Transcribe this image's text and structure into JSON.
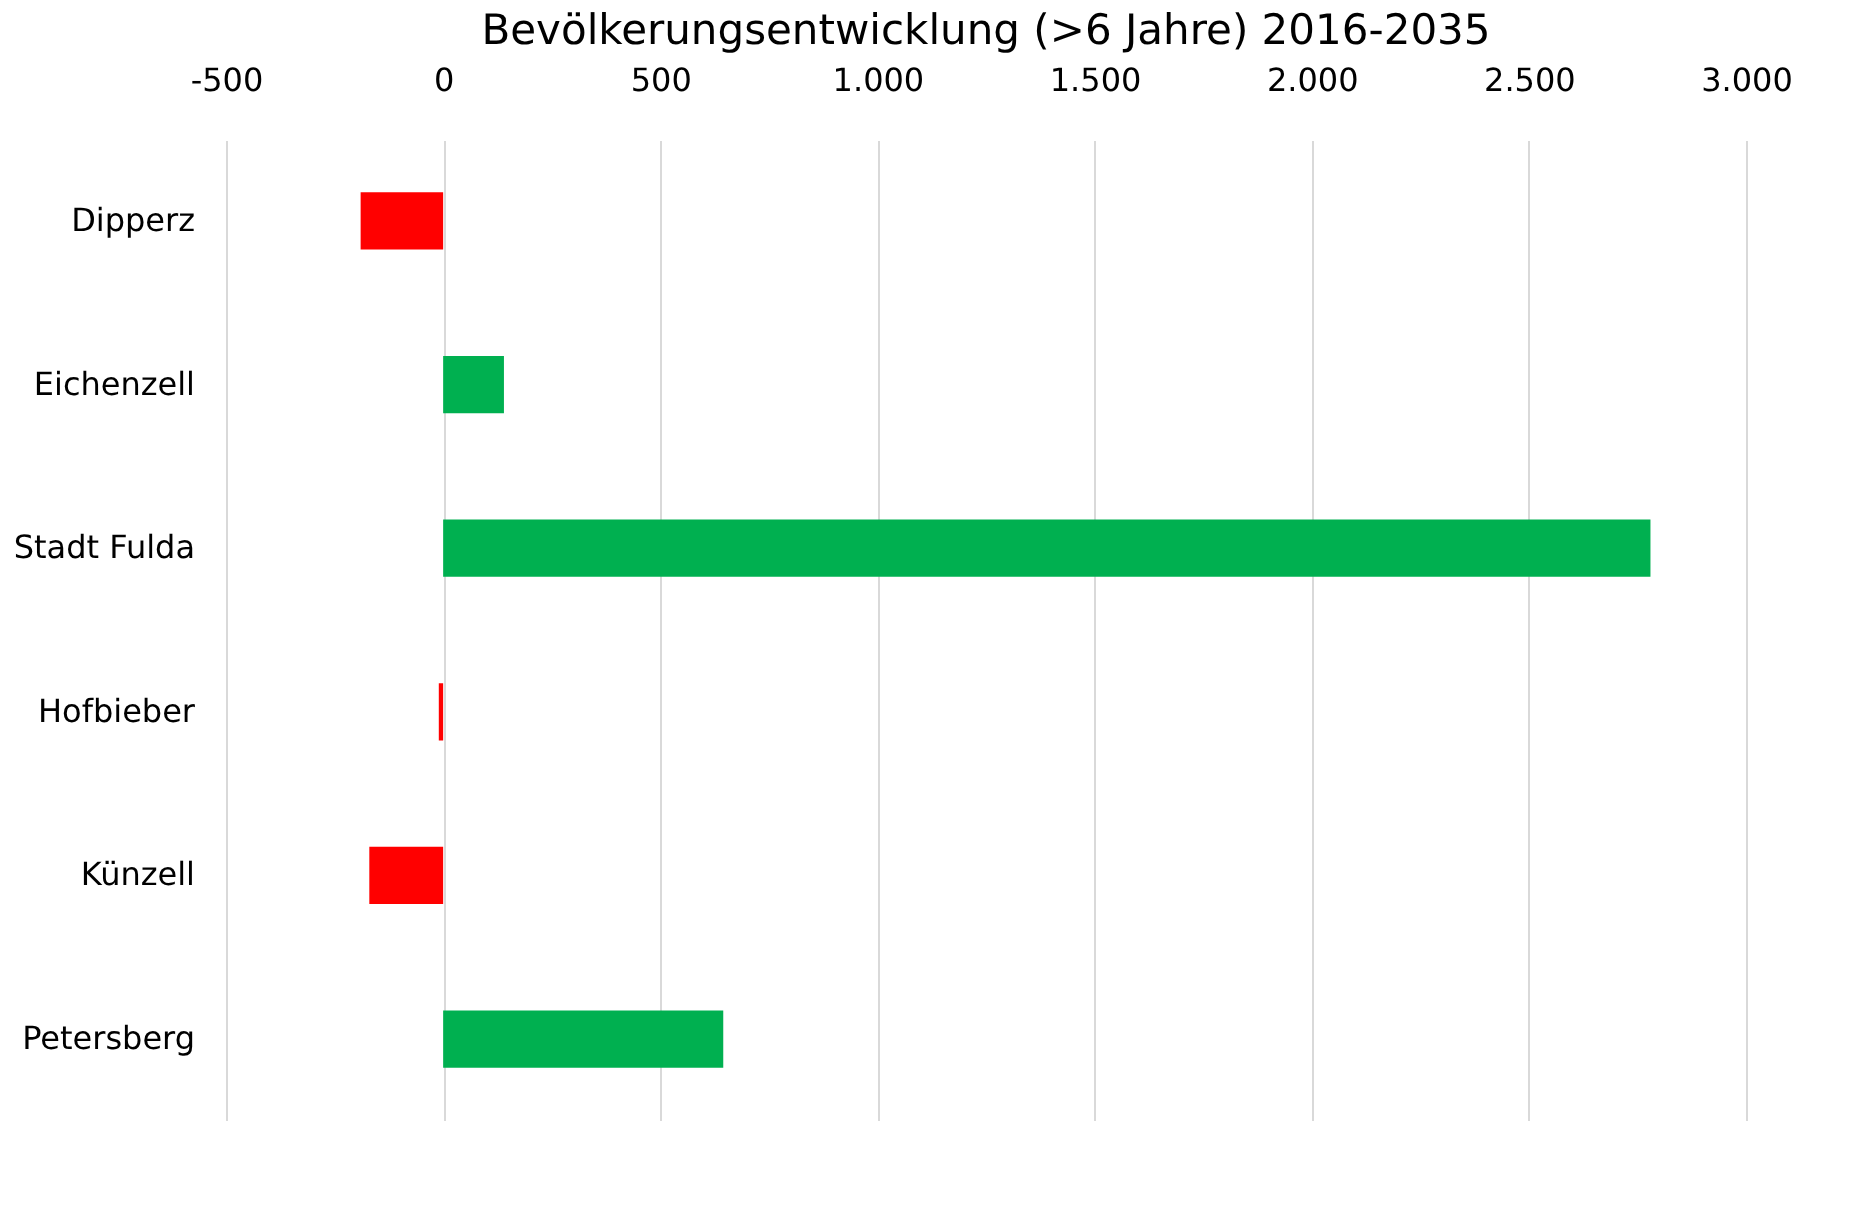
{
  "chart_data": {
    "type": "bar",
    "orientation": "horizontal",
    "title": "Bevölkerungsentwicklung (>6 Jahre) 2016-2035",
    "categories": [
      "Dipperz",
      "Eichenzell",
      "Stadt Fulda",
      "Hofbieber",
      "Künzell",
      "Petersberg"
    ],
    "values": [
      -190,
      140,
      2780,
      -10,
      -170,
      645
    ],
    "colors": [
      "#ff0000",
      "#00b050",
      "#00b050",
      "#ff0000",
      "#ff0000",
      "#00b050"
    ],
    "xlim": [
      -500,
      3000
    ],
    "xticks": [
      -500,
      0,
      500,
      {
        "value": 1000,
        "label": "1.000"
      },
      {
        "value": 1500,
        "label": "1.500"
      },
      {
        "value": 2000,
        "label": "2.000"
      },
      {
        "value": 2500,
        "label": "2.500"
      },
      {
        "value": 3000,
        "label": "3.000"
      }
    ],
    "grid": true
  }
}
